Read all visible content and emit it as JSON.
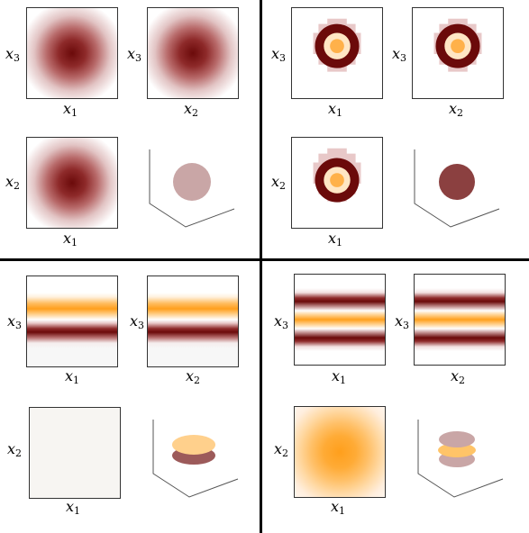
{
  "axis_labels": {
    "x1": {
      "var": "x",
      "sub": "1"
    },
    "x2": {
      "var": "x",
      "sub": "2"
    },
    "x3": {
      "var": "x",
      "sub": "3"
    }
  },
  "colors": {
    "dark_red": "#6b0a0a",
    "orange": "#ff9f1c",
    "light_orange": "#ffd8a0",
    "mauve": "#c9a6a6",
    "brown": "#8b4040",
    "background": "#ffffff",
    "divider": "#000000"
  },
  "panels": [
    {
      "id": "top-left",
      "pattern": "gaussian-blob",
      "projection_3d": "mauve-sphere"
    },
    {
      "id": "top-right",
      "pattern": "ring-shell",
      "projection_3d": "brown-sphere"
    },
    {
      "id": "bottom-left",
      "pattern": "two-bands",
      "projection_3d": "two-discs"
    },
    {
      "id": "bottom-right",
      "pattern": "three-bands",
      "projection_3d": "three-discs"
    }
  ]
}
